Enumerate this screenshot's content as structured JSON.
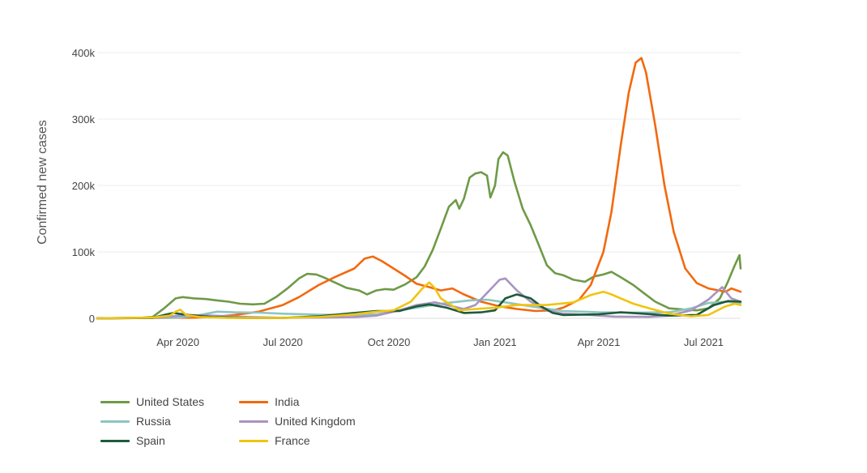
{
  "chart_data": {
    "type": "line",
    "title": "",
    "ylabel": "Confirmed new cases",
    "xlabel": "",
    "ylim": [
      0,
      400000
    ],
    "xlim": [
      "2020-01-22",
      "2021-08-02"
    ],
    "y_ticks": [
      {
        "value": 0,
        "label": "0"
      },
      {
        "value": 100000,
        "label": "100k"
      },
      {
        "value": 200000,
        "label": "200k"
      },
      {
        "value": 300000,
        "label": "300k"
      },
      {
        "value": 400000,
        "label": "400k"
      }
    ],
    "x_ticks": [
      {
        "value": "2020-04-01",
        "label": "Apr 2020"
      },
      {
        "value": "2020-07-01",
        "label": "Jul 2020"
      },
      {
        "value": "2020-10-01",
        "label": "Oct 2020"
      },
      {
        "value": "2021-01-01",
        "label": "Jan 2021"
      },
      {
        "value": "2021-04-01",
        "label": "Apr 2021"
      },
      {
        "value": "2021-07-01",
        "label": "Jul 2021"
      }
    ],
    "grid": "horizontal",
    "legend_position": "bottom-left",
    "series": [
      {
        "name": "United States",
        "color": "#6e9a47",
        "points": [
          [
            "2020-01-22",
            0
          ],
          [
            "2020-03-01",
            1000
          ],
          [
            "2020-03-10",
            2000
          ],
          [
            "2020-03-20",
            15000
          ],
          [
            "2020-03-30",
            30000
          ],
          [
            "2020-04-05",
            32000
          ],
          [
            "2020-04-15",
            30000
          ],
          [
            "2020-04-25",
            29000
          ],
          [
            "2020-05-05",
            27000
          ],
          [
            "2020-05-15",
            25000
          ],
          [
            "2020-05-25",
            22000
          ],
          [
            "2020-06-05",
            21000
          ],
          [
            "2020-06-15",
            22000
          ],
          [
            "2020-06-25",
            32000
          ],
          [
            "2020-07-05",
            45000
          ],
          [
            "2020-07-15",
            60000
          ],
          [
            "2020-07-22",
            67000
          ],
          [
            "2020-07-30",
            66000
          ],
          [
            "2020-08-05",
            62000
          ],
          [
            "2020-08-15",
            54000
          ],
          [
            "2020-08-25",
            46000
          ],
          [
            "2020-09-05",
            42000
          ],
          [
            "2020-09-12",
            36000
          ],
          [
            "2020-09-20",
            42000
          ],
          [
            "2020-09-28",
            44000
          ],
          [
            "2020-10-05",
            43000
          ],
          [
            "2020-10-15",
            51000
          ],
          [
            "2020-10-25",
            62000
          ],
          [
            "2020-11-01",
            78000
          ],
          [
            "2020-11-08",
            103000
          ],
          [
            "2020-11-15",
            135000
          ],
          [
            "2020-11-22",
            168000
          ],
          [
            "2020-11-28",
            178000
          ],
          [
            "2020-12-01",
            165000
          ],
          [
            "2020-12-05",
            180000
          ],
          [
            "2020-12-10",
            212000
          ],
          [
            "2020-12-15",
            218000
          ],
          [
            "2020-12-20",
            220000
          ],
          [
            "2020-12-25",
            215000
          ],
          [
            "2020-12-28",
            182000
          ],
          [
            "2021-01-01",
            200000
          ],
          [
            "2021-01-04",
            240000
          ],
          [
            "2021-01-08",
            250000
          ],
          [
            "2021-01-12",
            245000
          ],
          [
            "2021-01-18",
            205000
          ],
          [
            "2021-01-25",
            165000
          ],
          [
            "2021-02-01",
            140000
          ],
          [
            "2021-02-08",
            110000
          ],
          [
            "2021-02-15",
            80000
          ],
          [
            "2021-02-22",
            68000
          ],
          [
            "2021-03-01",
            65000
          ],
          [
            "2021-03-10",
            58000
          ],
          [
            "2021-03-20",
            55000
          ],
          [
            "2021-03-28",
            63000
          ],
          [
            "2021-04-05",
            66000
          ],
          [
            "2021-04-12",
            70000
          ],
          [
            "2021-04-20",
            62000
          ],
          [
            "2021-05-01",
            50000
          ],
          [
            "2021-05-10",
            38000
          ],
          [
            "2021-05-20",
            25000
          ],
          [
            "2021-06-01",
            15000
          ],
          [
            "2021-06-15",
            13000
          ],
          [
            "2021-06-25",
            12000
          ],
          [
            "2021-07-05",
            15000
          ],
          [
            "2021-07-15",
            30000
          ],
          [
            "2021-07-22",
            55000
          ],
          [
            "2021-07-28",
            80000
          ],
          [
            "2021-08-01",
            95000
          ],
          [
            "2021-08-02",
            75000
          ]
        ]
      },
      {
        "name": "India",
        "color": "#f2690e",
        "points": [
          [
            "2020-01-22",
            0
          ],
          [
            "2020-04-15",
            1000
          ],
          [
            "2020-05-01",
            2000
          ],
          [
            "2020-05-20",
            5000
          ],
          [
            "2020-06-10",
            10000
          ],
          [
            "2020-07-01",
            20000
          ],
          [
            "2020-07-15",
            32000
          ],
          [
            "2020-08-01",
            50000
          ],
          [
            "2020-08-15",
            62000
          ],
          [
            "2020-09-01",
            75000
          ],
          [
            "2020-09-10",
            90000
          ],
          [
            "2020-09-17",
            93000
          ],
          [
            "2020-09-25",
            86000
          ],
          [
            "2020-10-05",
            75000
          ],
          [
            "2020-10-15",
            64000
          ],
          [
            "2020-10-25",
            52000
          ],
          [
            "2020-11-05",
            47000
          ],
          [
            "2020-11-15",
            42000
          ],
          [
            "2020-11-25",
            45000
          ],
          [
            "2020-12-05",
            36000
          ],
          [
            "2020-12-20",
            25000
          ],
          [
            "2021-01-05",
            18000
          ],
          [
            "2021-01-20",
            14000
          ],
          [
            "2021-02-05",
            11000
          ],
          [
            "2021-02-20",
            12000
          ],
          [
            "2021-03-01",
            16000
          ],
          [
            "2021-03-15",
            28000
          ],
          [
            "2021-03-25",
            50000
          ],
          [
            "2021-04-05",
            100000
          ],
          [
            "2021-04-12",
            160000
          ],
          [
            "2021-04-20",
            260000
          ],
          [
            "2021-04-27",
            340000
          ],
          [
            "2021-05-03",
            385000
          ],
          [
            "2021-05-08",
            392000
          ],
          [
            "2021-05-12",
            370000
          ],
          [
            "2021-05-20",
            290000
          ],
          [
            "2021-05-28",
            200000
          ],
          [
            "2021-06-05",
            130000
          ],
          [
            "2021-06-15",
            75000
          ],
          [
            "2021-06-25",
            53000
          ],
          [
            "2021-07-05",
            45000
          ],
          [
            "2021-07-20",
            40000
          ],
          [
            "2021-07-25",
            45000
          ],
          [
            "2021-08-02",
            40000
          ]
        ]
      },
      {
        "name": "Russia",
        "color": "#8cc6be",
        "points": [
          [
            "2020-01-22",
            0
          ],
          [
            "2020-04-01",
            1000
          ],
          [
            "2020-04-20",
            5000
          ],
          [
            "2020-05-05",
            10000
          ],
          [
            "2020-05-20",
            9000
          ],
          [
            "2020-06-10",
            8500
          ],
          [
            "2020-07-01",
            7000
          ],
          [
            "2020-08-01",
            5500
          ],
          [
            "2020-09-01",
            5000
          ],
          [
            "2020-09-20",
            6000
          ],
          [
            "2020-10-10",
            12000
          ],
          [
            "2020-11-01",
            18000
          ],
          [
            "2020-11-20",
            23000
          ],
          [
            "2020-12-10",
            27000
          ],
          [
            "2020-12-25",
            28000
          ],
          [
            "2021-01-10",
            24000
          ],
          [
            "2021-02-01",
            18000
          ],
          [
            "2021-03-01",
            11000
          ],
          [
            "2021-04-01",
            9000
          ],
          [
            "2021-05-01",
            8500
          ],
          [
            "2021-06-01",
            9000
          ],
          [
            "2021-06-20",
            15000
          ],
          [
            "2021-07-05",
            23000
          ],
          [
            "2021-07-20",
            25000
          ],
          [
            "2021-08-02",
            23000
          ]
        ]
      },
      {
        "name": "United Kingdom",
        "color": "#a994c0",
        "points": [
          [
            "2020-01-22",
            0
          ],
          [
            "2020-03-15",
            1000
          ],
          [
            "2020-04-10",
            5000
          ],
          [
            "2020-05-01",
            4000
          ],
          [
            "2020-06-01",
            2000
          ],
          [
            "2020-07-01",
            700
          ],
          [
            "2020-08-01",
            1000
          ],
          [
            "2020-09-01",
            2000
          ],
          [
            "2020-09-20",
            4000
          ],
          [
            "2020-10-10",
            12000
          ],
          [
            "2020-10-25",
            20000
          ],
          [
            "2020-11-10",
            24000
          ],
          [
            "2020-11-25",
            18000
          ],
          [
            "2020-12-05",
            14000
          ],
          [
            "2020-12-15",
            20000
          ],
          [
            "2020-12-25",
            38000
          ],
          [
            "2021-01-05",
            58000
          ],
          [
            "2021-01-10",
            60000
          ],
          [
            "2021-01-20",
            42000
          ],
          [
            "2021-02-01",
            25000
          ],
          [
            "2021-02-15",
            12000
          ],
          [
            "2021-03-01",
            7000
          ],
          [
            "2021-03-20",
            5500
          ],
          [
            "2021-04-15",
            2500
          ],
          [
            "2021-05-15",
            2200
          ],
          [
            "2021-06-01",
            4000
          ],
          [
            "2021-06-20",
            12000
          ],
          [
            "2021-07-05",
            28000
          ],
          [
            "2021-07-17",
            47000
          ],
          [
            "2021-07-25",
            30000
          ],
          [
            "2021-08-02",
            25000
          ]
        ]
      },
      {
        "name": "Spain",
        "color": "#1e5a3c",
        "points": [
          [
            "2020-01-22",
            0
          ],
          [
            "2020-03-10",
            500
          ],
          [
            "2020-03-20",
            5000
          ],
          [
            "2020-03-28",
            8000
          ],
          [
            "2020-04-10",
            5000
          ],
          [
            "2020-05-01",
            2000
          ],
          [
            "2020-06-01",
            400
          ],
          [
            "2020-07-01",
            500
          ],
          [
            "2020-08-01",
            3000
          ],
          [
            "2020-09-01",
            8000
          ],
          [
            "2020-09-20",
            11000
          ],
          [
            "2020-10-10",
            11000
          ],
          [
            "2020-10-25",
            18000
          ],
          [
            "2020-11-05",
            21000
          ],
          [
            "2020-11-20",
            16000
          ],
          [
            "2020-12-05",
            8000
          ],
          [
            "2020-12-20",
            9000
          ],
          [
            "2021-01-01",
            12000
          ],
          [
            "2021-01-10",
            30000
          ],
          [
            "2021-01-20",
            36000
          ],
          [
            "2021-02-01",
            30000
          ],
          [
            "2021-02-10",
            18000
          ],
          [
            "2021-02-20",
            8000
          ],
          [
            "2021-03-01",
            5000
          ],
          [
            "2021-04-01",
            6000
          ],
          [
            "2021-04-20",
            9000
          ],
          [
            "2021-05-10",
            7000
          ],
          [
            "2021-06-01",
            4000
          ],
          [
            "2021-06-25",
            5000
          ],
          [
            "2021-07-10",
            20000
          ],
          [
            "2021-07-22",
            26000
          ],
          [
            "2021-08-02",
            25000
          ]
        ]
      },
      {
        "name": "France",
        "color": "#f0c40f",
        "points": [
          [
            "2020-01-22",
            0
          ],
          [
            "2020-03-10",
            1000
          ],
          [
            "2020-03-25",
            4000
          ],
          [
            "2020-03-30",
            10000
          ],
          [
            "2020-04-03",
            13000
          ],
          [
            "2020-04-08",
            5000
          ],
          [
            "2020-04-20",
            2000
          ],
          [
            "2020-05-15",
            500
          ],
          [
            "2020-07-01",
            500
          ],
          [
            "2020-08-01",
            2000
          ],
          [
            "2020-09-01",
            6000
          ],
          [
            "2020-09-20",
            10000
          ],
          [
            "2020-10-05",
            12000
          ],
          [
            "2020-10-20",
            25000
          ],
          [
            "2020-10-30",
            45000
          ],
          [
            "2020-11-05",
            54000
          ],
          [
            "2020-11-10",
            45000
          ],
          [
            "2020-11-15",
            30000
          ],
          [
            "2020-12-01",
            12000
          ],
          [
            "2020-12-15",
            14000
          ],
          [
            "2021-01-01",
            16000
          ],
          [
            "2021-01-20",
            20000
          ],
          [
            "2021-02-15",
            20000
          ],
          [
            "2021-03-10",
            24000
          ],
          [
            "2021-03-25",
            35000
          ],
          [
            "2021-04-05",
            40000
          ],
          [
            "2021-04-12",
            36000
          ],
          [
            "2021-04-20",
            30000
          ],
          [
            "2021-05-01",
            22000
          ],
          [
            "2021-05-15",
            15000
          ],
          [
            "2021-06-01",
            7000
          ],
          [
            "2021-06-20",
            3000
          ],
          [
            "2021-07-05",
            5000
          ],
          [
            "2021-07-20",
            18000
          ],
          [
            "2021-07-28",
            22000
          ],
          [
            "2021-08-02",
            20000
          ]
        ]
      }
    ]
  }
}
